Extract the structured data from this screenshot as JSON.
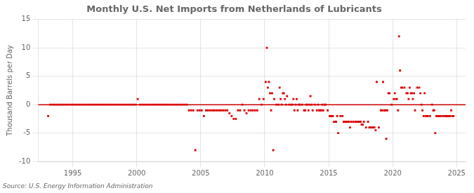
{
  "chart_data": {
    "type": "scatter",
    "title": "Monthly U.S. Net Imports from Netherlands of Lubricants",
    "ylabel": "Thousand Barrels per Day",
    "annotations": [
      "Source: U.S. Energy Information Administration"
    ],
    "color": "#dd0000",
    "marker": "square",
    "grid": true,
    "reference_line": {
      "y": 0,
      "color": "#cc0000"
    },
    "xlim": [
      1992.3,
      2025.7
    ],
    "ylim": [
      -10,
      15
    ],
    "xticks": [
      1995,
      2000,
      2005,
      2010,
      2015,
      2020,
      2025
    ],
    "yticks": [
      -10,
      -5,
      0,
      5,
      10,
      15
    ],
    "x": [
      1993.08,
      1993.25,
      1993.42,
      1993.58,
      1993.75,
      1993.92,
      1994.08,
      1994.25,
      1994.42,
      1994.58,
      1994.75,
      1994.92,
      1995.08,
      1995.25,
      1995.42,
      1995.58,
      1995.75,
      1995.92,
      1996.08,
      1996.25,
      1996.42,
      1996.58,
      1996.75,
      1996.92,
      1997.08,
      1997.25,
      1997.42,
      1997.58,
      1997.75,
      1997.92,
      1998.08,
      1998.25,
      1998.42,
      1998.58,
      1998.75,
      1998.92,
      1999.08,
      1999.25,
      1999.42,
      1999.58,
      1999.75,
      1999.92,
      2000.08,
      2000.25,
      2000.42,
      2000.58,
      2000.75,
      2000.92,
      2001.08,
      2001.25,
      2001.42,
      2001.58,
      2001.75,
      2001.92,
      2002.08,
      2002.25,
      2002.42,
      2002.58,
      2002.75,
      2002.92,
      2003.08,
      2003.25,
      2003.42,
      2003.58,
      2003.75,
      2003.92,
      2004.08,
      2004.25,
      2004.42,
      2004.58,
      2004.75,
      2004.92,
      2005.08,
      2005.25,
      2005.42,
      2005.58,
      2005.75,
      2005.92,
      2006.08,
      2006.25,
      2006.42,
      2006.58,
      2006.75,
      2006.92,
      2007.08,
      2007.25,
      2007.42,
      2007.58,
      2007.75,
      2007.92,
      2008.08,
      2008.25,
      2008.42,
      2008.58,
      2008.75,
      2008.92,
      2009.08,
      2009.25,
      2009.42,
      2009.58,
      2009.75,
      2009.92,
      2010.08,
      2010.17,
      2010.25,
      2010.33,
      2010.42,
      2010.5,
      2010.58,
      2010.67,
      2010.75,
      2010.92,
      2011.08,
      2011.17,
      2011.25,
      2011.33,
      2011.42,
      2011.5,
      2011.58,
      2011.67,
      2011.75,
      2011.92,
      2012.08,
      2012.17,
      2012.25,
      2012.33,
      2012.42,
      2012.5,
      2012.58,
      2012.67,
      2012.75,
      2012.92,
      2013.08,
      2013.17,
      2013.25,
      2013.33,
      2013.42,
      2013.5,
      2013.58,
      2013.67,
      2013.75,
      2013.92,
      2014.08,
      2014.17,
      2014.25,
      2014.33,
      2014.42,
      2014.5,
      2014.58,
      2014.67,
      2014.75,
      2014.92,
      2015.08,
      2015.17,
      2015.25,
      2015.33,
      2015.42,
      2015.5,
      2015.58,
      2015.67,
      2015.75,
      2015.92,
      2016.08,
      2016.17,
      2016.25,
      2016.33,
      2016.42,
      2016.5,
      2016.58,
      2016.67,
      2016.75,
      2016.92,
      2017.08,
      2017.17,
      2017.25,
      2017.33,
      2017.42,
      2017.5,
      2017.58,
      2017.67,
      2017.75,
      2017.92,
      2018.08,
      2018.17,
      2018.25,
      2018.33,
      2018.42,
      2018.5,
      2018.58,
      2018.67,
      2018.75,
      2018.92,
      2019.08,
      2019.17,
      2019.25,
      2019.33,
      2019.42,
      2019.5,
      2019.58,
      2019.67,
      2019.75,
      2019.92,
      2020.08,
      2020.17,
      2020.25,
      2020.33,
      2020.42,
      2020.5,
      2020.58,
      2020.67,
      2020.75,
      2020.92,
      2021.08,
      2021.17,
      2021.25,
      2021.33,
      2021.42,
      2021.5,
      2021.58,
      2021.67,
      2021.75,
      2021.92,
      2022.08,
      2022.17,
      2022.25,
      2022.33,
      2022.42,
      2022.5,
      2022.58,
      2022.67,
      2022.75,
      2022.92,
      2023.08,
      2023.17,
      2023.25,
      2023.33,
      2023.42,
      2023.5,
      2023.58,
      2023.67,
      2023.75,
      2023.92,
      2024.08,
      2024.17,
      2024.25,
      2024.33,
      2024.42,
      2024.5,
      2024.58,
      2024.67,
      2024.75
    ],
    "values": [
      -2.0,
      0.0,
      0.0,
      0.0,
      0.0,
      0.0,
      0.0,
      0.0,
      0.0,
      0.0,
      0.0,
      0.0,
      0.0,
      0.0,
      0.0,
      0.0,
      0.0,
      0.0,
      0.0,
      0.0,
      0.0,
      0.0,
      0.0,
      0.0,
      0.0,
      0.0,
      0.0,
      0.0,
      0.0,
      0.0,
      0.0,
      0.0,
      0.0,
      0.0,
      0.0,
      0.0,
      0.0,
      0.0,
      0.0,
      0.0,
      0.0,
      0.0,
      1.0,
      0.0,
      0.0,
      0.0,
      0.0,
      0.0,
      0.0,
      0.0,
      0.0,
      0.0,
      0.0,
      0.0,
      0.0,
      0.0,
      0.0,
      0.0,
      0.0,
      0.0,
      0.0,
      0.0,
      0.0,
      0.0,
      0.0,
      0.0,
      -1.0,
      -1.0,
      -1.0,
      -8.0,
      -1.0,
      -1.0,
      -1.0,
      -2.0,
      -1.0,
      -1.0,
      -1.0,
      -1.0,
      -1.0,
      -1.0,
      -1.0,
      -1.0,
      -1.0,
      -1.0,
      -1.0,
      -1.5,
      -2.0,
      -2.5,
      -2.5,
      -1.0,
      -1.0,
      0.0,
      -1.0,
      -1.5,
      -1.0,
      -1.0,
      -1.0,
      -1.0,
      -1.0,
      1.0,
      0.0,
      1.0,
      4.0,
      10.0,
      3.0,
      4.0,
      2.0,
      -1.0,
      2.0,
      -8.0,
      1.0,
      0.0,
      0.0,
      3.0,
      1.0,
      0.0,
      2.0,
      2.0,
      1.0,
      0.0,
      1.5,
      0.0,
      0.0,
      0.0,
      1.0,
      -1.0,
      0.0,
      1.0,
      -1.0,
      0.0,
      0.0,
      0.0,
      -1.0,
      -1.0,
      0.0,
      0.0,
      -1.0,
      0.0,
      1.5,
      0.0,
      -1.0,
      0.0,
      -1.0,
      0.0,
      -1.0,
      -1.0,
      -1.0,
      0.0,
      -1.0,
      0.0,
      0.0,
      -1.0,
      -2.0,
      -2.0,
      -2.0,
      -2.0,
      -3.0,
      -3.0,
      -3.0,
      -2.0,
      -5.0,
      -2.0,
      -2.0,
      -3.0,
      -3.0,
      -3.0,
      -3.0,
      -3.0,
      -3.0,
      -4.0,
      -3.0,
      -3.0,
      -3.0,
      -3.0,
      -3.0,
      -3.0,
      -3.0,
      -3.0,
      -3.5,
      -3.5,
      -3.0,
      -4.0,
      -3.0,
      -4.0,
      -4.0,
      -4.0,
      -4.0,
      -4.0,
      -4.0,
      -4.5,
      4.0,
      -4.0,
      -1.0,
      -1.0,
      4.0,
      -1.0,
      -1.0,
      -6.0,
      -1.0,
      2.0,
      2.0,
      0.0,
      1.0,
      2.0,
      1.0,
      1.0,
      -1.0,
      12.0,
      6.0,
      3.0,
      3.0,
      3.0,
      2.0,
      2.0,
      1.0,
      3.0,
      2.0,
      2.0,
      1.0,
      2.0,
      -1.0,
      3.0,
      3.0,
      2.0,
      0.0,
      -1.0,
      -2.0,
      2.0,
      -2.0,
      -2.0,
      -2.0,
      -2.0,
      0.0,
      -1.0,
      -1.0,
      -5.0,
      -2.0,
      -2.0,
      -2.0,
      -2.0,
      -2.0,
      -2.0,
      -2.0,
      -2.0,
      -2.0,
      -2.0,
      -2.0,
      -2.0,
      -1.0,
      -2.0,
      -2.0
    ]
  }
}
